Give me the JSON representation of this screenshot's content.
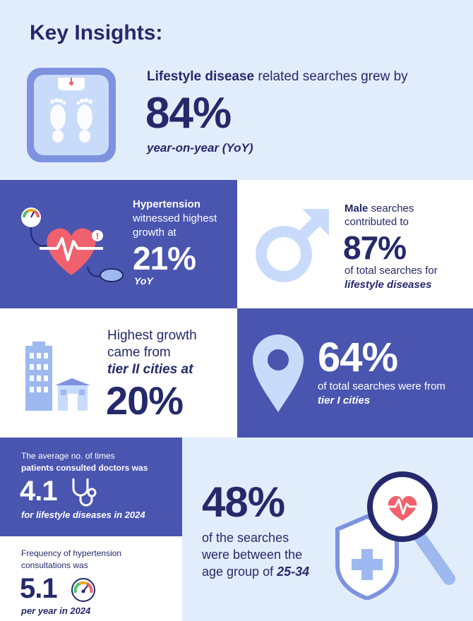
{
  "title": "Key Insights:",
  "top": {
    "lead_bold": "Lifestyle disease",
    "lead_rest": " related searches grew by",
    "value": "84%",
    "sub": "year-on-year (YoY)"
  },
  "hypertension": {
    "line1": "Hypertension",
    "line2": "witnessed highest",
    "line3": "growth at",
    "value": "21%",
    "sub": "YoY"
  },
  "male": {
    "line1_bold": "Male",
    "line1_rest": " searches",
    "line2": "contributed to",
    "value": "87%",
    "line3": "of total searches for",
    "line4": "lifestyle diseases"
  },
  "tier2": {
    "line1": "Highest growth",
    "line2": "came from",
    "line3": "tier II cities at",
    "value": "20%"
  },
  "tier1": {
    "value": "64%",
    "line1": "of total searches were from",
    "line2": "tier I cities"
  },
  "avg_consult": {
    "line1": "The average no. of times",
    "line2": "patients consulted doctors was",
    "value": "4.1",
    "sub": "for lifestyle diseases in 2024"
  },
  "freq_hyper": {
    "line1": "Frequency of hypertension",
    "line2": "consultations was",
    "value": "5.1",
    "sub": "per year in 2024"
  },
  "age": {
    "value": "48%",
    "line1": "of the searches",
    "line2": "were between the",
    "line3_pre": "age group of ",
    "line3_bold": "25-34"
  },
  "colors": {
    "navy": "#24296b",
    "panel_blue": "#4a55b0",
    "light_bg": "#e2edfb",
    "icon_blue": "#9db9f0",
    "heart_red": "#f0616d"
  }
}
